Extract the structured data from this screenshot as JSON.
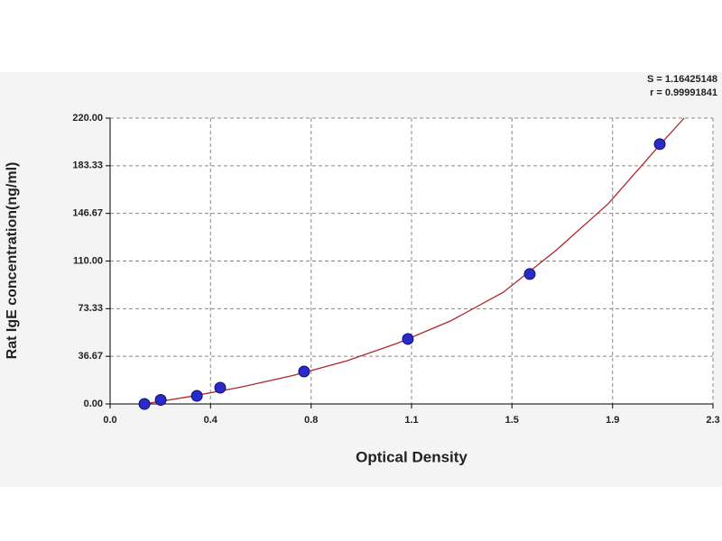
{
  "chart_data": {
    "type": "scatter",
    "annotations": [
      "S = 1.16425148",
      "r = 0.99991841"
    ],
    "xlabel": "Optical Density",
    "ylabel": "Rat IgE concentration(ng/ml)",
    "xlim": [
      0,
      2.3
    ],
    "ylim": [
      0,
      220
    ],
    "xticks": [
      {
        "value": 0,
        "label": "0.0"
      },
      {
        "value": 0.383,
        "label": "0.4"
      },
      {
        "value": 0.767,
        "label": "0.8"
      },
      {
        "value": 1.15,
        "label": "1.1"
      },
      {
        "value": 1.533,
        "label": "1.5"
      },
      {
        "value": 1.917,
        "label": "1.9"
      },
      {
        "value": 2.3,
        "label": "2.3"
      }
    ],
    "yticks": [
      {
        "value": 0,
        "label": "0.00"
      },
      {
        "value": 36.67,
        "label": "36.67"
      },
      {
        "value": 73.33,
        "label": "73.33"
      },
      {
        "value": 110,
        "label": "110.00"
      },
      {
        "value": 146.67,
        "label": "146.67"
      },
      {
        "value": 183.33,
        "label": "183.33"
      },
      {
        "value": 220,
        "label": "220.00"
      }
    ],
    "grid": true,
    "series": [
      {
        "color": "#2a2ac8",
        "x": [
          0.131,
          0.193,
          0.331,
          0.42,
          0.74,
          1.136,
          1.601,
          2.097
        ],
        "values": [
          0,
          3.13,
          6.25,
          12.5,
          25,
          50,
          100,
          200
        ]
      }
    ],
    "curve": {
      "color": "#b02828",
      "x": [
        0.13,
        0.3,
        0.5,
        0.7,
        0.9,
        1.1,
        1.3,
        1.5,
        1.7,
        1.9,
        2.1,
        2.19
      ],
      "values": [
        0,
        5.5,
        13,
        22,
        33,
        47,
        64,
        86,
        118,
        154,
        200,
        220
      ]
    }
  }
}
